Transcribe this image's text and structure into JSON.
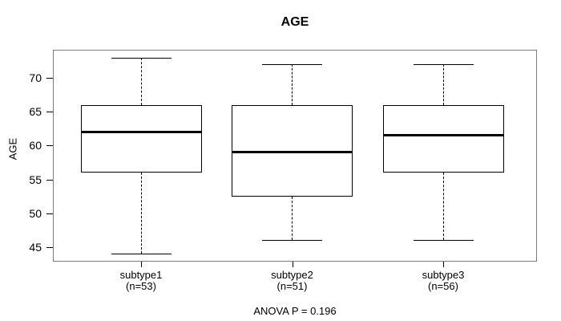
{
  "title": "AGE",
  "y_axis_label": "AGE",
  "annotation": "ANOVA P = 0.196",
  "chart_data": {
    "type": "boxplot",
    "title": "AGE",
    "xlabel": "",
    "ylabel": "AGE",
    "annotation": "ANOVA P = 0.196",
    "ylim": [
      42.84,
      74.16
    ],
    "yticks": [
      45,
      50,
      55,
      60,
      65,
      70
    ],
    "grid": false,
    "categories": [
      "subtype1",
      "subtype2",
      "subtype3"
    ],
    "category_sublabels": [
      "(n=53)",
      "(n=51)",
      "(n=56)"
    ],
    "series": [
      {
        "name": "subtype1",
        "n": 53,
        "whisker_low": 44,
        "q1": 56,
        "median": 62,
        "q3": 66,
        "whisker_high": 73
      },
      {
        "name": "subtype2",
        "n": 51,
        "whisker_low": 46,
        "q1": 52.5,
        "median": 59,
        "q3": 66,
        "whisker_high": 72
      },
      {
        "name": "subtype3",
        "n": 56,
        "whisker_low": 46,
        "q1": 56,
        "median": 61.5,
        "q3": 66,
        "whisker_high": 72
      }
    ],
    "colors": {
      "background": "#ffffff",
      "plot_border": "#7d7d7d",
      "box_border": "#000000",
      "median": "#000000",
      "whisker": "#000000",
      "text": "#000000"
    }
  }
}
